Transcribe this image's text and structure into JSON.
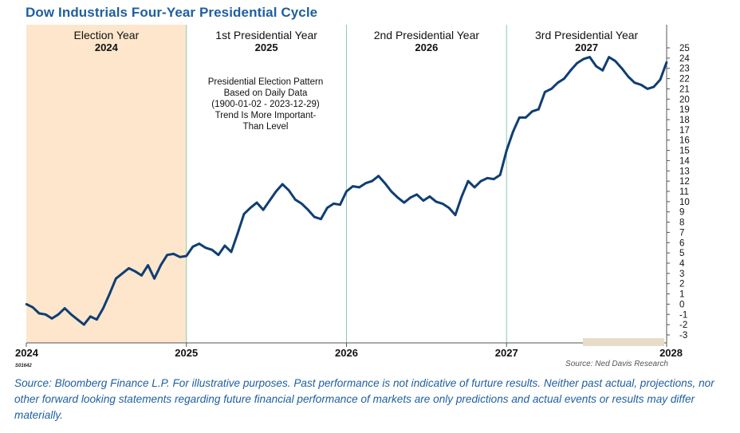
{
  "title": "Dow Industrials Four-Year Presidential Cycle",
  "chart_code": "S01642",
  "caption": "Source: Bloomberg Finance L.P. For illustrative purposes. Past performance is not indicative of furture results. Neither past actual, projections, nor other forward looking statements regarding future financial performance of markets are only predictions and actual events or results may differ materially.",
  "colors": {
    "title": "#1f5fa0",
    "line": "#0f3e73",
    "election_band": "#fde6cc",
    "divider": "#8cc9b5",
    "source_box": "#e6dcc8"
  },
  "chart_data": {
    "type": "line",
    "title": "Dow Industrials Four-Year Presidential Cycle",
    "xlabel": "",
    "ylabel": "",
    "x_ticks": [
      "2024",
      "2025",
      "2026",
      "2027",
      "2028"
    ],
    "xlim": [
      2024,
      2028
    ],
    "ylim": [
      -3,
      25
    ],
    "y_ticks": [
      -3,
      -2,
      -1,
      0,
      1,
      2,
      3,
      4,
      5,
      6,
      7,
      8,
      9,
      10,
      11,
      12,
      13,
      14,
      15,
      16,
      17,
      18,
      19,
      20,
      21,
      22,
      23,
      24,
      25
    ],
    "y_axis_side": "right",
    "periods": [
      {
        "label": "Election Year",
        "year": "2024",
        "highlighted": true
      },
      {
        "label": "1st Presidential Year",
        "year": "2025",
        "highlighted": false
      },
      {
        "label": "2nd Presidential Year",
        "year": "2026",
        "highlighted": false
      },
      {
        "label": "3rd Presidential Year",
        "year": "2027",
        "highlighted": false
      }
    ],
    "annotation": [
      "Presidential Election Pattern",
      "Based on Daily Data",
      "(1900-01-02 - 2023-12-29)",
      "Trend Is More Important-",
      "Than Level"
    ],
    "source": "Source: Ned Davis Research",
    "series": [
      {
        "x": [
          2024.0,
          2024.04,
          2024.08,
          2024.12,
          2024.16,
          2024.2,
          2024.24,
          2024.28,
          2024.32,
          2024.36,
          2024.4,
          2024.44,
          2024.48,
          2024.52,
          2024.56,
          2024.6,
          2024.64,
          2024.68,
          2024.72,
          2024.76,
          2024.8,
          2024.84,
          2024.88,
          2024.92,
          2024.96,
          2025.0,
          2025.04,
          2025.08,
          2025.12,
          2025.16,
          2025.2,
          2025.24,
          2025.28,
          2025.32,
          2025.36,
          2025.4,
          2025.44,
          2025.48,
          2025.52,
          2025.56,
          2025.6,
          2025.64,
          2025.68,
          2025.72,
          2025.76,
          2025.8,
          2025.84,
          2025.88,
          2025.92,
          2025.96,
          2026.0,
          2026.04,
          2026.08,
          2026.12,
          2026.16,
          2026.2,
          2026.24,
          2026.28,
          2026.32,
          2026.36,
          2026.4,
          2026.44,
          2026.48,
          2026.52,
          2026.56,
          2026.6,
          2026.64,
          2026.68,
          2026.72,
          2026.76,
          2026.8,
          2026.84,
          2026.88,
          2026.92,
          2026.96,
          2027.0,
          2027.04,
          2027.08,
          2027.12,
          2027.16,
          2027.2,
          2027.24,
          2027.28,
          2027.32,
          2027.36,
          2027.4,
          2027.44,
          2027.48,
          2027.52,
          2027.56,
          2027.6,
          2027.64,
          2027.68,
          2027.72,
          2027.76,
          2027.8,
          2027.84,
          2027.88,
          2027.92,
          2027.96,
          2028.0
        ],
        "values": [
          0.0,
          -0.3,
          -0.9,
          -1.0,
          -1.4,
          -1.0,
          -0.4,
          -1.0,
          -1.5,
          -2.0,
          -1.2,
          -1.5,
          -0.4,
          1.0,
          2.5,
          3.0,
          3.5,
          3.2,
          2.8,
          3.8,
          2.5,
          3.8,
          4.8,
          4.9,
          4.6,
          4.7,
          5.6,
          5.9,
          5.5,
          5.3,
          4.8,
          5.7,
          5.1,
          6.9,
          8.8,
          9.4,
          9.9,
          9.2,
          10.1,
          11.0,
          11.7,
          11.1,
          10.2,
          9.8,
          9.2,
          8.5,
          8.3,
          9.4,
          9.8,
          9.7,
          11.0,
          11.5,
          11.4,
          11.8,
          12.0,
          12.5,
          11.8,
          11.0,
          10.4,
          9.9,
          10.4,
          10.7,
          10.1,
          10.5,
          10.0,
          9.8,
          9.4,
          8.7,
          10.5,
          12.0,
          11.4,
          12.0,
          12.3,
          12.2,
          12.6,
          15.0,
          16.8,
          18.2,
          18.2,
          18.8,
          19.0,
          20.7,
          21.0,
          21.6,
          22.0,
          22.8,
          23.5,
          23.9,
          24.1,
          23.2,
          22.8,
          24.1,
          23.7,
          23.0,
          22.2,
          21.6,
          21.4,
          21.0,
          21.2,
          21.9,
          23.6
        ]
      }
    ]
  }
}
